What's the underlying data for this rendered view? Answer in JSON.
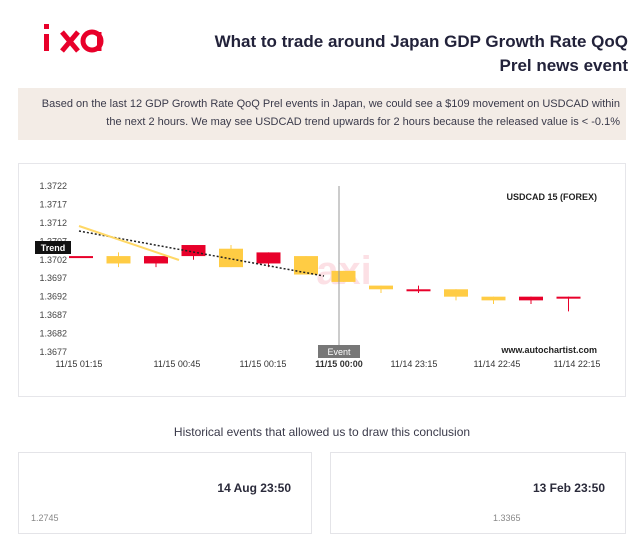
{
  "header": {
    "title": "What to trade around Japan GDP Growth Rate QoQ\nPrel news event"
  },
  "banner": {
    "text": "Based on the last 12 GDP Growth Rate QoQ Prel events in Japan, we could see a $109 movement on USDCAD within the next 2 hours. We may see USDCAD trend upwards for 2 hours because the released value is < -0.1%"
  },
  "chart": {
    "instrument": "USDCAD 15 (FOREX)",
    "watermark_url": "www.autochartist.com",
    "trend_label": "Trend",
    "event_label": "Event",
    "colors": {
      "bull": "#ffcc44",
      "bear": "#e8002a",
      "trend": "#ffd866",
      "line": "#222222"
    }
  },
  "chart_data": {
    "type": "candlestick",
    "ylim": [
      1.3677,
      1.3722
    ],
    "y_ticks": [
      "1.3722",
      "1.3717",
      "1.3712",
      "1.3707",
      "1.3702",
      "1.3697",
      "1.3692",
      "1.3687",
      "1.3682",
      "1.3677"
    ],
    "x_ticks": [
      "11/15 01:15",
      "11/15 00:45",
      "11/15 00:15",
      "11/15 00:00",
      "11/14 23:15",
      "11/14 22:45",
      "11/14 22:15"
    ],
    "candles": [
      {
        "open": 1.3703,
        "close": 1.3703,
        "high": 1.3703,
        "low": 1.3703,
        "dir": "bear"
      },
      {
        "open": 1.3703,
        "close": 1.3701,
        "high": 1.3704,
        "low": 1.37,
        "dir": "bull"
      },
      {
        "open": 1.3703,
        "close": 1.3701,
        "high": 1.3703,
        "low": 1.37,
        "dir": "bear"
      },
      {
        "open": 1.3706,
        "close": 1.3703,
        "high": 1.3706,
        "low": 1.3702,
        "dir": "bear"
      },
      {
        "open": 1.3705,
        "close": 1.37,
        "high": 1.3706,
        "low": 1.37,
        "dir": "bull"
      },
      {
        "open": 1.3704,
        "close": 1.3701,
        "high": 1.3704,
        "low": 1.37,
        "dir": "bear"
      },
      {
        "open": 1.3703,
        "close": 1.3698,
        "high": 1.3703,
        "low": 1.3698,
        "dir": "bull"
      },
      {
        "open": 1.3699,
        "close": 1.3696,
        "high": 1.3699,
        "low": 1.3696,
        "dir": "bull"
      },
      {
        "open": 1.3695,
        "close": 1.3694,
        "high": 1.3695,
        "low": 1.3693,
        "dir": "bull"
      },
      {
        "open": 1.3694,
        "close": 1.3694,
        "high": 1.3695,
        "low": 1.3693,
        "dir": "bear"
      },
      {
        "open": 1.3694,
        "close": 1.3692,
        "high": 1.3694,
        "low": 1.3691,
        "dir": "bull"
      },
      {
        "open": 1.3692,
        "close": 1.3691,
        "high": 1.3692,
        "low": 1.369,
        "dir": "bull"
      },
      {
        "open": 1.3692,
        "close": 1.3691,
        "high": 1.3692,
        "low": 1.369,
        "dir": "bear"
      },
      {
        "open": 1.3692,
        "close": 1.3692,
        "high": 1.3692,
        "low": 1.3688,
        "dir": "bear"
      }
    ]
  },
  "historical": {
    "title": "Historical events that allowed us to draw this conclusion",
    "cards": [
      {
        "date": "14 Aug 23:50",
        "value": "1.2745"
      },
      {
        "date": "13 Feb 23:50",
        "value": "1.3365"
      }
    ]
  }
}
